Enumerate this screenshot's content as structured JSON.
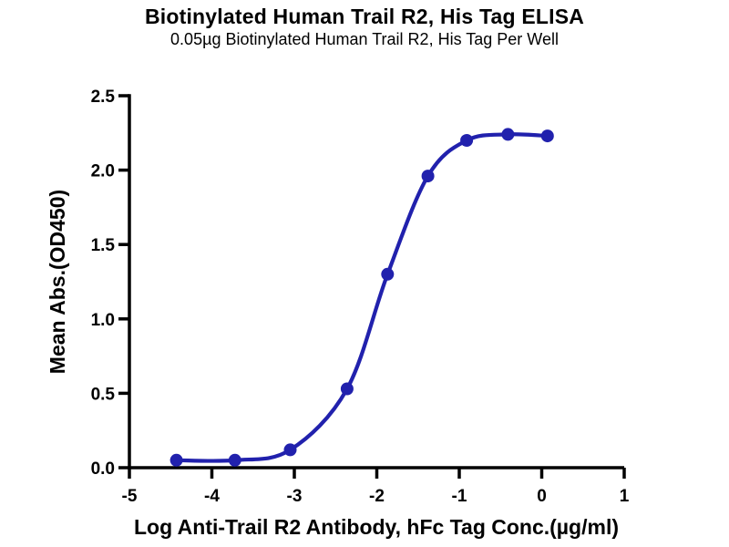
{
  "page": {
    "title": "Biotinylated Human Trail R2, His Tag ELISA",
    "subtitle": "0.05µg Biotinylated Human Trail R2, His Tag Per Well"
  },
  "chart_data": {
    "type": "scatter",
    "title": "Biotinylated Human Trail R2, His Tag ELISA",
    "subtitle": "0.05µg Biotinylated Human Trail R2, His Tag Per Well",
    "xlabel": "Log Anti-Trail R2 Antibody, hFc Tag Conc.(µg/ml)",
    "ylabel": "Mean Abs.(OD450)",
    "xlim": [
      -5,
      1
    ],
    "ylim": [
      0,
      2.5
    ],
    "x_tick_labels": [
      "-5",
      "-4",
      "-3",
      "-2",
      "-1",
      "0",
      "1"
    ],
    "y_tick_labels": [
      "0.0",
      "0.5",
      "1.0",
      "1.5",
      "2.0",
      "2.5"
    ],
    "grid": false,
    "legend": "none",
    "curve_style": "smooth sigmoid fit through points",
    "colors": {
      "curve": "#2121AD",
      "marker": "#2121AD",
      "axis": "#000000"
    },
    "series": [
      {
        "name": "Anti-Trail R2 Antibody, hFc Tag",
        "x": [
          -4.43,
          -3.72,
          -3.05,
          -2.36,
          -1.87,
          -1.38,
          -0.91,
          -0.41,
          0.07
        ],
        "y": [
          0.05,
          0.05,
          0.12,
          0.53,
          1.3,
          1.96,
          2.2,
          2.24,
          2.23
        ]
      }
    ]
  }
}
